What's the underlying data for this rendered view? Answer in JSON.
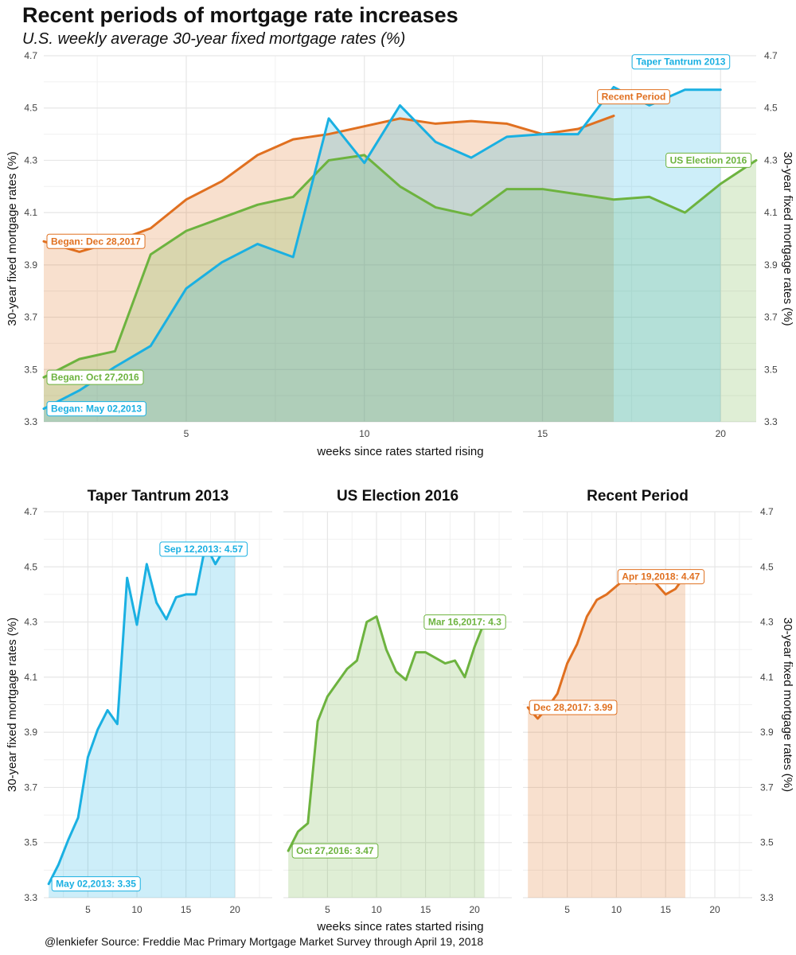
{
  "title": "Recent periods of mortgage rate increases",
  "subtitle": "U.S. weekly average 30-year fixed mortgage rates (%)",
  "caption": "@lenkiefer Source: Freddie Mac Primary Mortgage Market Survey through April 19, 2018",
  "colors": {
    "taper": "#1ab0e2",
    "election": "#6db33f",
    "recent": "#e07020",
    "grid": "#e6e6e6"
  },
  "chart_data": [
    {
      "type": "area",
      "xlabel": "weeks since rates started rising",
      "ylabel": "30-year fixed mortgage rates (%)",
      "ylabel_right": "30-year fixed mortgage rates (%)",
      "xlim": [
        1,
        21
      ],
      "ylim": [
        3.3,
        4.7
      ],
      "x_ticks": [
        5,
        10,
        15,
        20
      ],
      "y_ticks": [
        3.3,
        3.5,
        3.7,
        3.9,
        4.1,
        4.3,
        4.5,
        4.7
      ],
      "series": [
        {
          "name": "Taper Tantrum 2013",
          "key": "taper",
          "x": [
            1,
            2,
            3,
            4,
            5,
            6,
            7,
            8,
            9,
            10,
            11,
            12,
            13,
            14,
            15,
            16,
            17,
            18,
            19,
            20
          ],
          "values": [
            3.35,
            3.42,
            3.51,
            3.59,
            3.81,
            3.91,
            3.98,
            3.93,
            4.46,
            4.29,
            4.51,
            4.37,
            4.31,
            4.39,
            4.4,
            4.4,
            4.58,
            4.51,
            4.57,
            4.57
          ]
        },
        {
          "name": "US Election 2016",
          "key": "election",
          "x": [
            1,
            2,
            3,
            4,
            5,
            6,
            7,
            8,
            9,
            10,
            11,
            12,
            13,
            14,
            15,
            16,
            17,
            18,
            19,
            20,
            21
          ],
          "values": [
            3.47,
            3.54,
            3.57,
            3.94,
            4.03,
            4.08,
            4.13,
            4.16,
            4.3,
            4.32,
            4.2,
            4.12,
            4.09,
            4.19,
            4.19,
            4.17,
            4.15,
            4.16,
            4.1,
            4.21,
            4.3
          ]
        },
        {
          "name": "Recent Period",
          "key": "recent",
          "x": [
            1,
            2,
            3,
            4,
            5,
            6,
            7,
            8,
            9,
            10,
            11,
            12,
            13,
            14,
            15,
            16,
            17
          ],
          "values": [
            3.99,
            3.95,
            3.99,
            4.04,
            4.15,
            4.22,
            4.32,
            4.38,
            4.4,
            4.43,
            4.46,
            4.44,
            4.45,
            4.44,
            4.4,
            4.42,
            4.47
          ]
        }
      ],
      "annotations": [
        {
          "text": "Began: May 02,2013",
          "key": "taper"
        },
        {
          "text": "Began: Oct 27,2016",
          "key": "election"
        },
        {
          "text": "Began: Dec 28,2017",
          "key": "recent"
        },
        {
          "text": "Taper Tantrum 2013",
          "key": "taper"
        },
        {
          "text": "Recent Period",
          "key": "recent"
        },
        {
          "text": "US Election 2016",
          "key": "election"
        }
      ]
    },
    {
      "type": "area",
      "facets": [
        "Taper Tantrum 2013",
        "US Election 2016",
        "Recent Period"
      ],
      "xlabel": "weeks since rates started rising",
      "ylabel": "30-year fixed mortgage rates (%)",
      "ylabel_right": "30-year fixed mortgage rates (%)",
      "ylim": [
        3.3,
        4.7
      ],
      "x_ticks": [
        5,
        10,
        15,
        20
      ],
      "y_ticks": [
        3.3,
        3.5,
        3.7,
        3.9,
        4.1,
        4.3,
        4.5,
        4.7
      ],
      "annotations": [
        {
          "facet": "Taper Tantrum 2013",
          "start": "May 02,2013: 3.35",
          "end": "Sep 12,2013: 4.57"
        },
        {
          "facet": "US Election 2016",
          "start": "Oct 27,2016: 3.47",
          "end": "Mar 16,2017: 4.3"
        },
        {
          "facet": "Recent Period",
          "start": "Dec 28,2017: 3.99",
          "end": "Apr 19,2018: 4.47"
        }
      ]
    }
  ]
}
